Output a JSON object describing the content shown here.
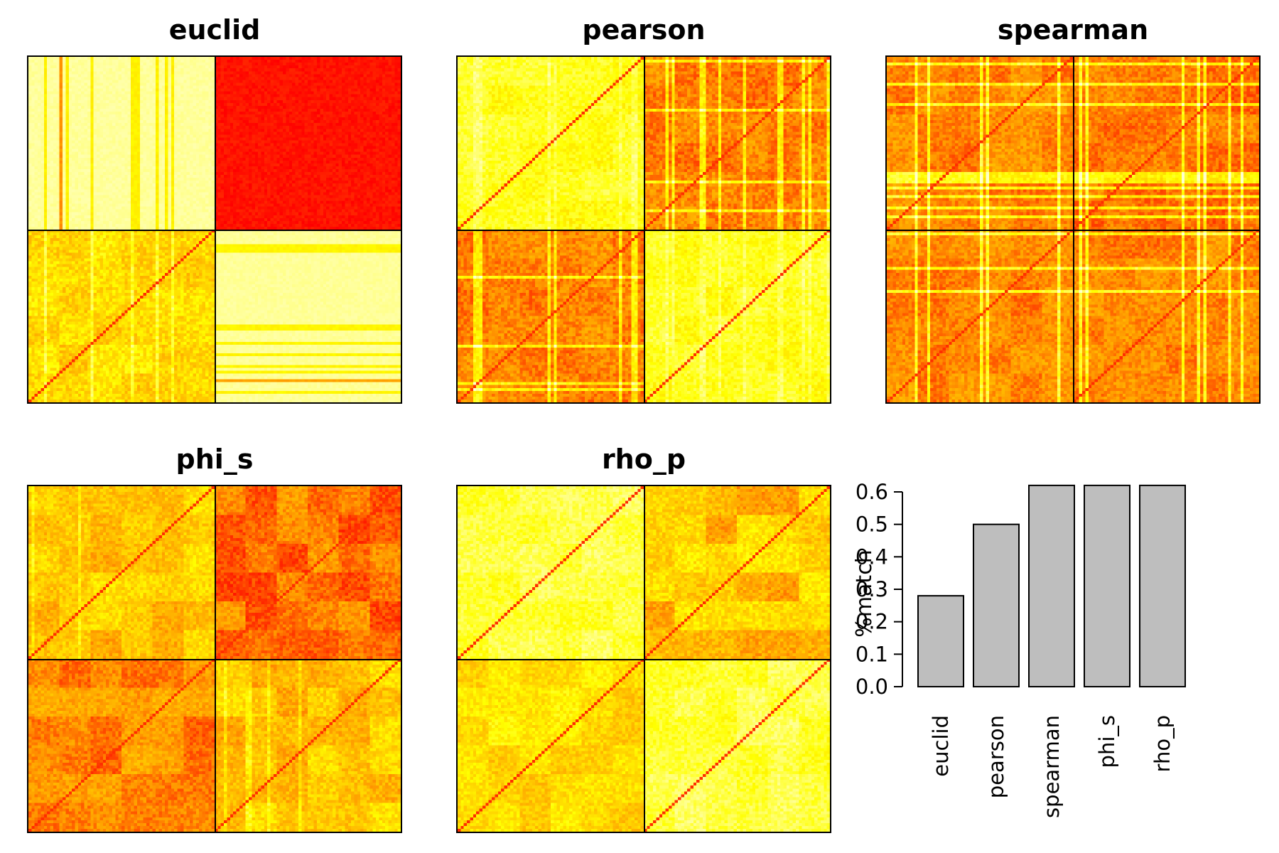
{
  "chart_data": [
    {
      "type": "heatmap",
      "title": "euclid",
      "size": 120,
      "groups": 2,
      "style": "euclid",
      "colors": [
        "#ffffcc",
        "#ffff00",
        "#ff9900",
        "#ff0000"
      ]
    },
    {
      "type": "heatmap",
      "title": "pearson",
      "size": 120,
      "groups": 2,
      "style": "pearson",
      "colors": [
        "#ffffcc",
        "#ffff00",
        "#ff9900",
        "#ff0000"
      ]
    },
    {
      "type": "heatmap",
      "title": "spearman",
      "size": 120,
      "groups": 2,
      "style": "spearman",
      "colors": [
        "#ffffcc",
        "#ffff00",
        "#ff9900",
        "#ff0000"
      ]
    },
    {
      "type": "heatmap",
      "title": "phi_s",
      "size": 120,
      "groups": 2,
      "style": "phi_s",
      "colors": [
        "#ffffcc",
        "#ffff00",
        "#ff9900",
        "#ff0000"
      ]
    },
    {
      "type": "heatmap",
      "title": "rho_p",
      "size": 120,
      "groups": 2,
      "style": "rho_p",
      "colors": [
        "#ffffcc",
        "#ffff00",
        "#ff9900",
        "#ff0000"
      ]
    },
    {
      "type": "bar",
      "categories": [
        "euclid",
        "pearson",
        "spearman",
        "phi_s",
        "rho_p"
      ],
      "values": [
        0.28,
        0.5,
        0.62,
        0.62,
        0.62
      ],
      "ylabel": "%match",
      "ylim": [
        0,
        0.6
      ],
      "yticks": [
        "0.0",
        "0.1",
        "0.2",
        "0.3",
        "0.4",
        "0.5",
        "0.6"
      ],
      "bar_color": "#bebebe"
    }
  ]
}
